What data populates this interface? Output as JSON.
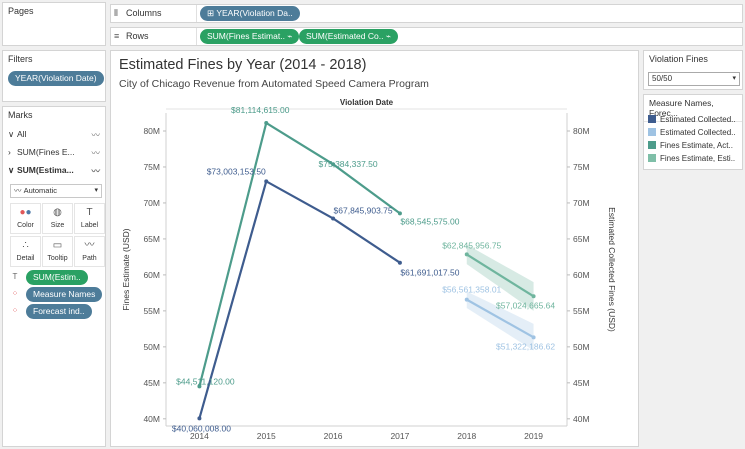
{
  "sidebar": {
    "pages_title": "Pages",
    "filters_title": "Filters",
    "filter_pill": "YEAR(Violation Date)",
    "marks_title": "Marks",
    "marks_rows": [
      "All",
      "SUM(Fines E...",
      "SUM(Estima..."
    ],
    "mark_type": "Automatic",
    "mark_buttons": [
      "Color",
      "Size",
      "Label",
      "Detail",
      "Tooltip",
      "Path"
    ],
    "encodings": [
      "SUM(Estim..",
      "Measure Names",
      "Forecast ind.."
    ]
  },
  "shelves": {
    "columns_label": "Columns",
    "columns_pill": "YEAR(Violation Da..",
    "rows_label": "Rows",
    "rows_pills": [
      "SUM(Fines Estimat..",
      "SUM(Estimated Co.."
    ]
  },
  "view": {
    "title": "Estimated Fines by Year (2014 - 2018)",
    "subtitle": "City of Chicago Revenue from Automated Speed Camera Program"
  },
  "violation_fines": {
    "title": "Violation Fines",
    "value": "50/50"
  },
  "legend": {
    "title": "Measure Names, Forec...",
    "items": [
      {
        "label": "Estimated Collected..",
        "color": "#3e5c8e"
      },
      {
        "label": "Estimated Collected..",
        "color": "#9fc3e3"
      },
      {
        "label": "Fines Estimate, Act..",
        "color": "#4d9c8b"
      },
      {
        "label": "Fines Estimate, Esti..",
        "color": "#7fbfa8"
      }
    ]
  },
  "chart_data": {
    "type": "line",
    "column_header": "Violation Date",
    "x": [
      "2014",
      "2015",
      "2016",
      "2017",
      "2018",
      "2019"
    ],
    "ylabel_left": "Fines Estimate (USD)",
    "ylabel_right": "Estimated Collected Fines (USD)",
    "yticks": [
      "40M",
      "45M",
      "50M",
      "55M",
      "60M",
      "65M",
      "70M",
      "75M",
      "80M"
    ],
    "ylim": [
      39000000,
      82500000
    ],
    "series": [
      {
        "color": "#4d9c8b",
        "x": [
          "2014",
          "2015",
          "2016",
          "2017"
        ],
        "values": [
          44511120,
          81114615,
          75384337.5,
          68545575
        ],
        "labels": [
          "$44,511,120.00",
          "$81,114,615.00",
          "$75,384,337.50",
          "$68,545,575.00"
        ]
      },
      {
        "color": "#3e5c8e",
        "x": [
          "2014",
          "2015",
          "2016",
          "2017"
        ],
        "values": [
          40060008,
          73003153.5,
          67845903.75,
          61691017.5
        ],
        "labels": [
          "$40,060,008.00",
          "$73,003,153.50",
          "$67,845,903.75",
          "$61,691,017.50"
        ]
      },
      {
        "color": "#6fb59e",
        "x": [
          "2018",
          "2019"
        ],
        "values": [
          62845956.75,
          57024665.64
        ],
        "labels": [
          "$62,845,956.75",
          "$57,024,665.64"
        ],
        "band": [
          [
            61500000,
            64200000
          ],
          [
            55000000,
            59000000
          ]
        ]
      },
      {
        "color": "#9fc3e3",
        "x": [
          "2018",
          "2019"
        ],
        "values": [
          56561358.01,
          51322186.62
        ],
        "labels": [
          "$56,561,358.01",
          "$51,322,186.62"
        ],
        "band": [
          [
            55400000,
            57700000
          ],
          [
            49500000,
            53200000
          ]
        ]
      }
    ]
  }
}
